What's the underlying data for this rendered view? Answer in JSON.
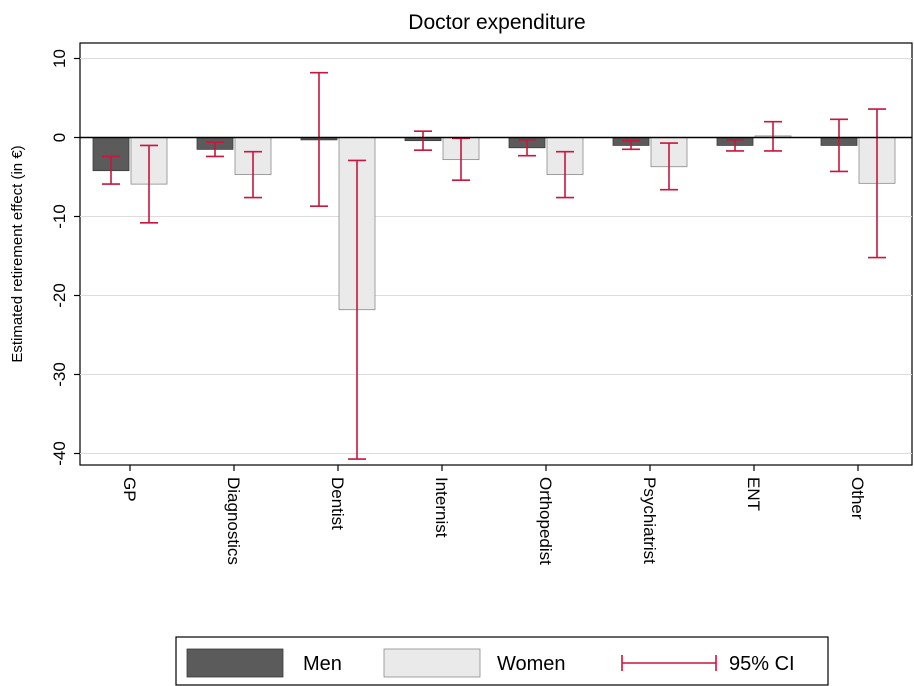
{
  "chart_data": {
    "type": "bar",
    "title": "Doctor expenditure",
    "ylabel": "Estimated retirement effect (in €)",
    "xlabel": "",
    "ylim": [
      -43,
      12
    ],
    "yticks": [
      10,
      0,
      -10,
      -20,
      -30,
      -40
    ],
    "grid": true,
    "legend_position": "bottom",
    "categories": [
      "GP",
      "Diagnostics",
      "Dentist",
      "Internist",
      "Orthopedist",
      "Psychiatrist",
      "ENT",
      "Other"
    ],
    "series": [
      {
        "name": "Men",
        "color": "#5b5b5b",
        "values": [
          -4.2,
          -1.5,
          -0.3,
          -0.4,
          -1.3,
          -1.0,
          -1.0,
          -1.0
        ],
        "ci_low": [
          -5.9,
          -2.4,
          -8.7,
          -1.6,
          -2.3,
          -1.5,
          -1.7,
          -4.3
        ],
        "ci_high": [
          -2.4,
          -0.6,
          8.2,
          0.8,
          -0.3,
          -0.4,
          -0.3,
          2.3
        ]
      },
      {
        "name": "Women",
        "color": "#eaeaea",
        "values": [
          -5.9,
          -4.7,
          -21.8,
          -2.8,
          -4.7,
          -3.7,
          0.2,
          -5.8
        ],
        "ci_low": [
          -10.8,
          -7.6,
          -40.7,
          -5.4,
          -7.6,
          -6.6,
          -1.7,
          -15.2
        ],
        "ci_high": [
          -1.0,
          -1.8,
          -2.9,
          -0.1,
          -1.8,
          -0.7,
          2.0,
          3.6
        ]
      }
    ],
    "ci_label": "95% CI",
    "ci_color": "#c8163d"
  }
}
